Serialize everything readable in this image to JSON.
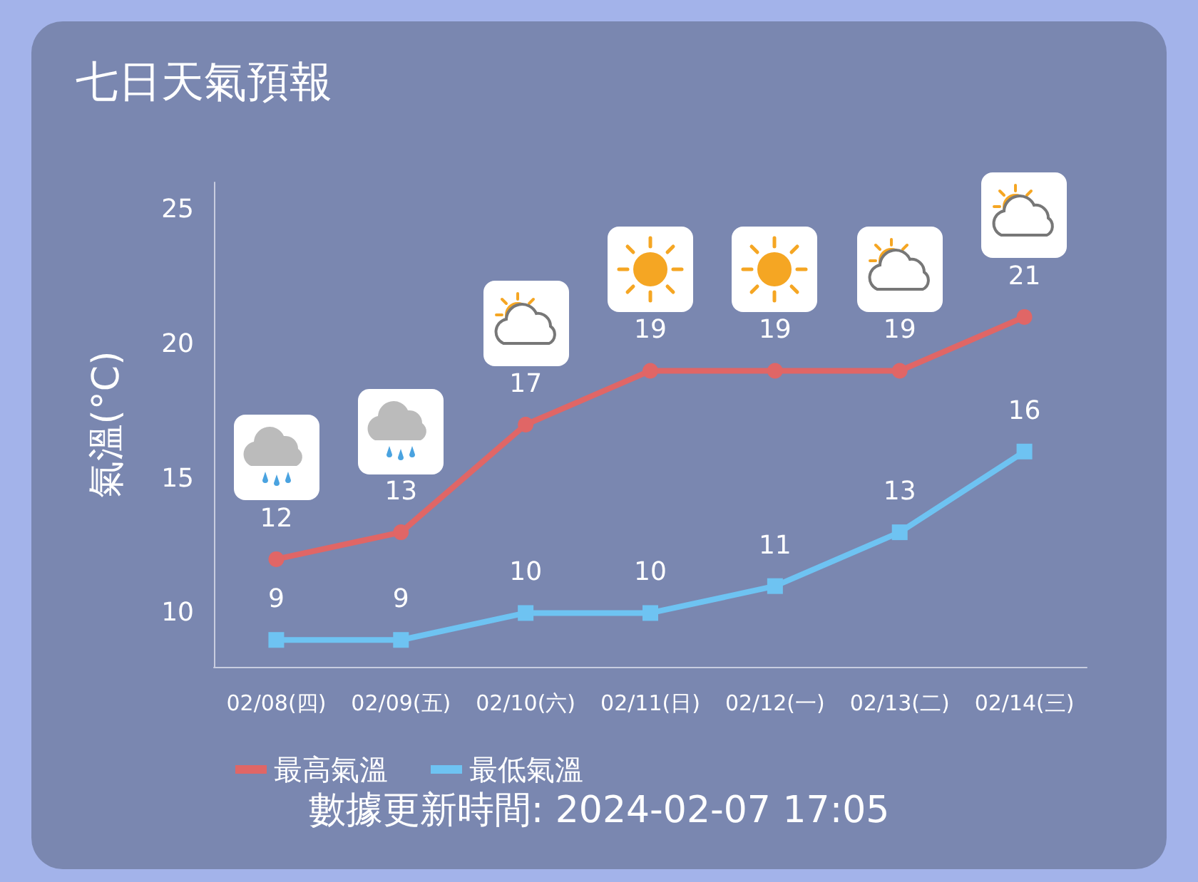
{
  "chart_data": {
    "type": "line",
    "title": "七日天氣預報",
    "ylabel": "氣溫(°C)",
    "categories": [
      "02/08(四)",
      "02/09(五)",
      "02/10(六)",
      "02/11(日)",
      "02/12(一)",
      "02/13(二)",
      "02/14(三)"
    ],
    "series": [
      {
        "name": "最高氣溫",
        "color": "#e06666",
        "marker": "circle",
        "values": [
          12,
          13,
          17,
          19,
          19,
          19,
          21
        ]
      },
      {
        "name": "最低氣溫",
        "color": "#6ec3f2",
        "marker": "square",
        "values": [
          9,
          9,
          10,
          10,
          11,
          13,
          16
        ]
      }
    ],
    "ylim": [
      8,
      26
    ],
    "yticks": [
      10,
      15,
      20,
      25
    ],
    "grid": false,
    "legend": "bottom",
    "data_labels": true,
    "line_style": "solid",
    "annotations": [
      "數據更新時間: 2024-02-07 17:05"
    ]
  }
}
